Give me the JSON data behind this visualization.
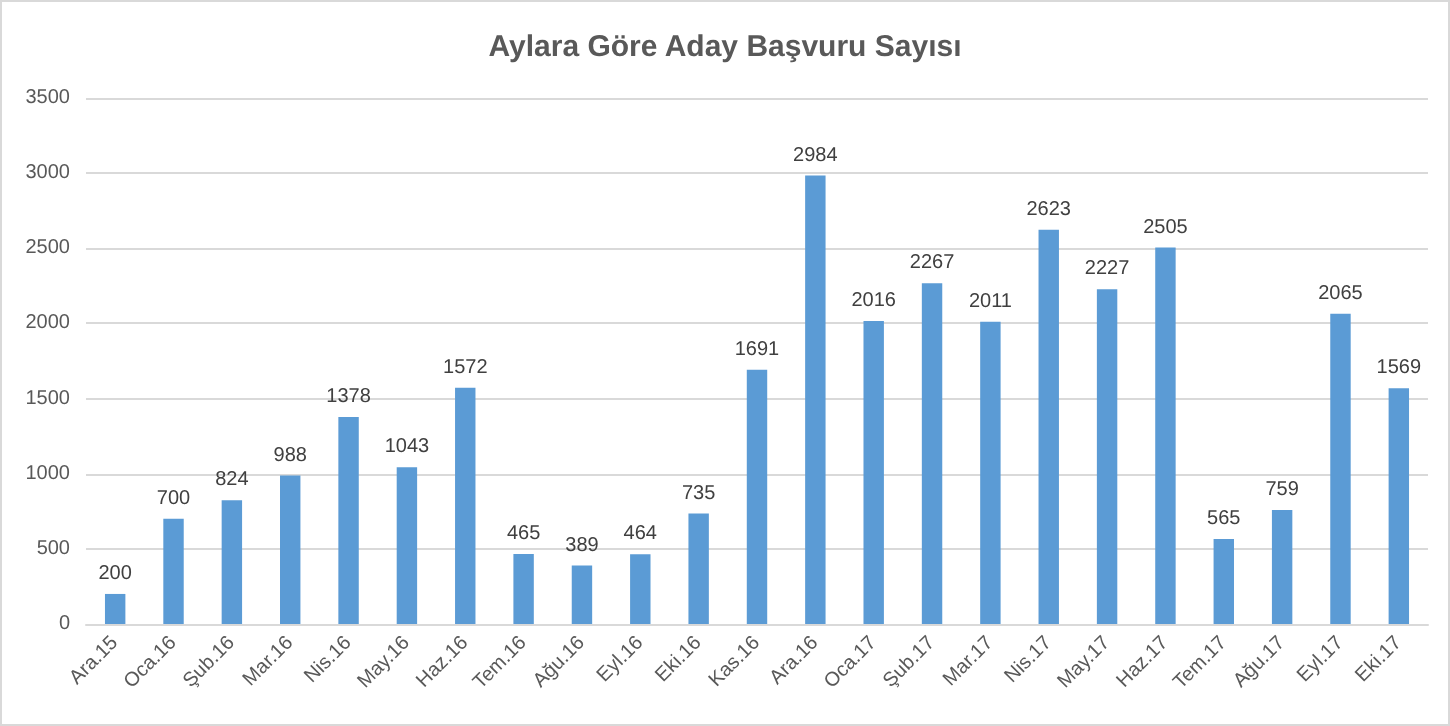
{
  "chart_data": {
    "type": "bar",
    "title": "Aylara Göre Aday Başvuru Sayısı",
    "categories": [
      "Ara.15",
      "Oca.16",
      "Şub.16",
      "Mar.16",
      "Nis.16",
      "May.16",
      "Haz.16",
      "Tem.16",
      "Ağu.16",
      "Eyl.16",
      "Eki.16",
      "Kas.16",
      "Ara.16",
      "Oca.17",
      "Şub.17",
      "Mar.17",
      "Nis.17",
      "May.17",
      "Haz.17",
      "Tem.17",
      "Ağu.17",
      "Eyl.17",
      "Eki.17"
    ],
    "values": [
      200,
      700,
      824,
      988,
      1378,
      1043,
      1572,
      465,
      389,
      464,
      735,
      1691,
      2984,
      2016,
      2267,
      2011,
      2623,
      2227,
      2505,
      565,
      759,
      2065,
      1569
    ],
    "color": "#5b9bd5",
    "ylim": [
      0,
      3500
    ],
    "yticks": [
      0,
      500,
      1000,
      1500,
      2000,
      2500,
      3000,
      3500
    ],
    "grid": "y",
    "data_labels": true
  }
}
